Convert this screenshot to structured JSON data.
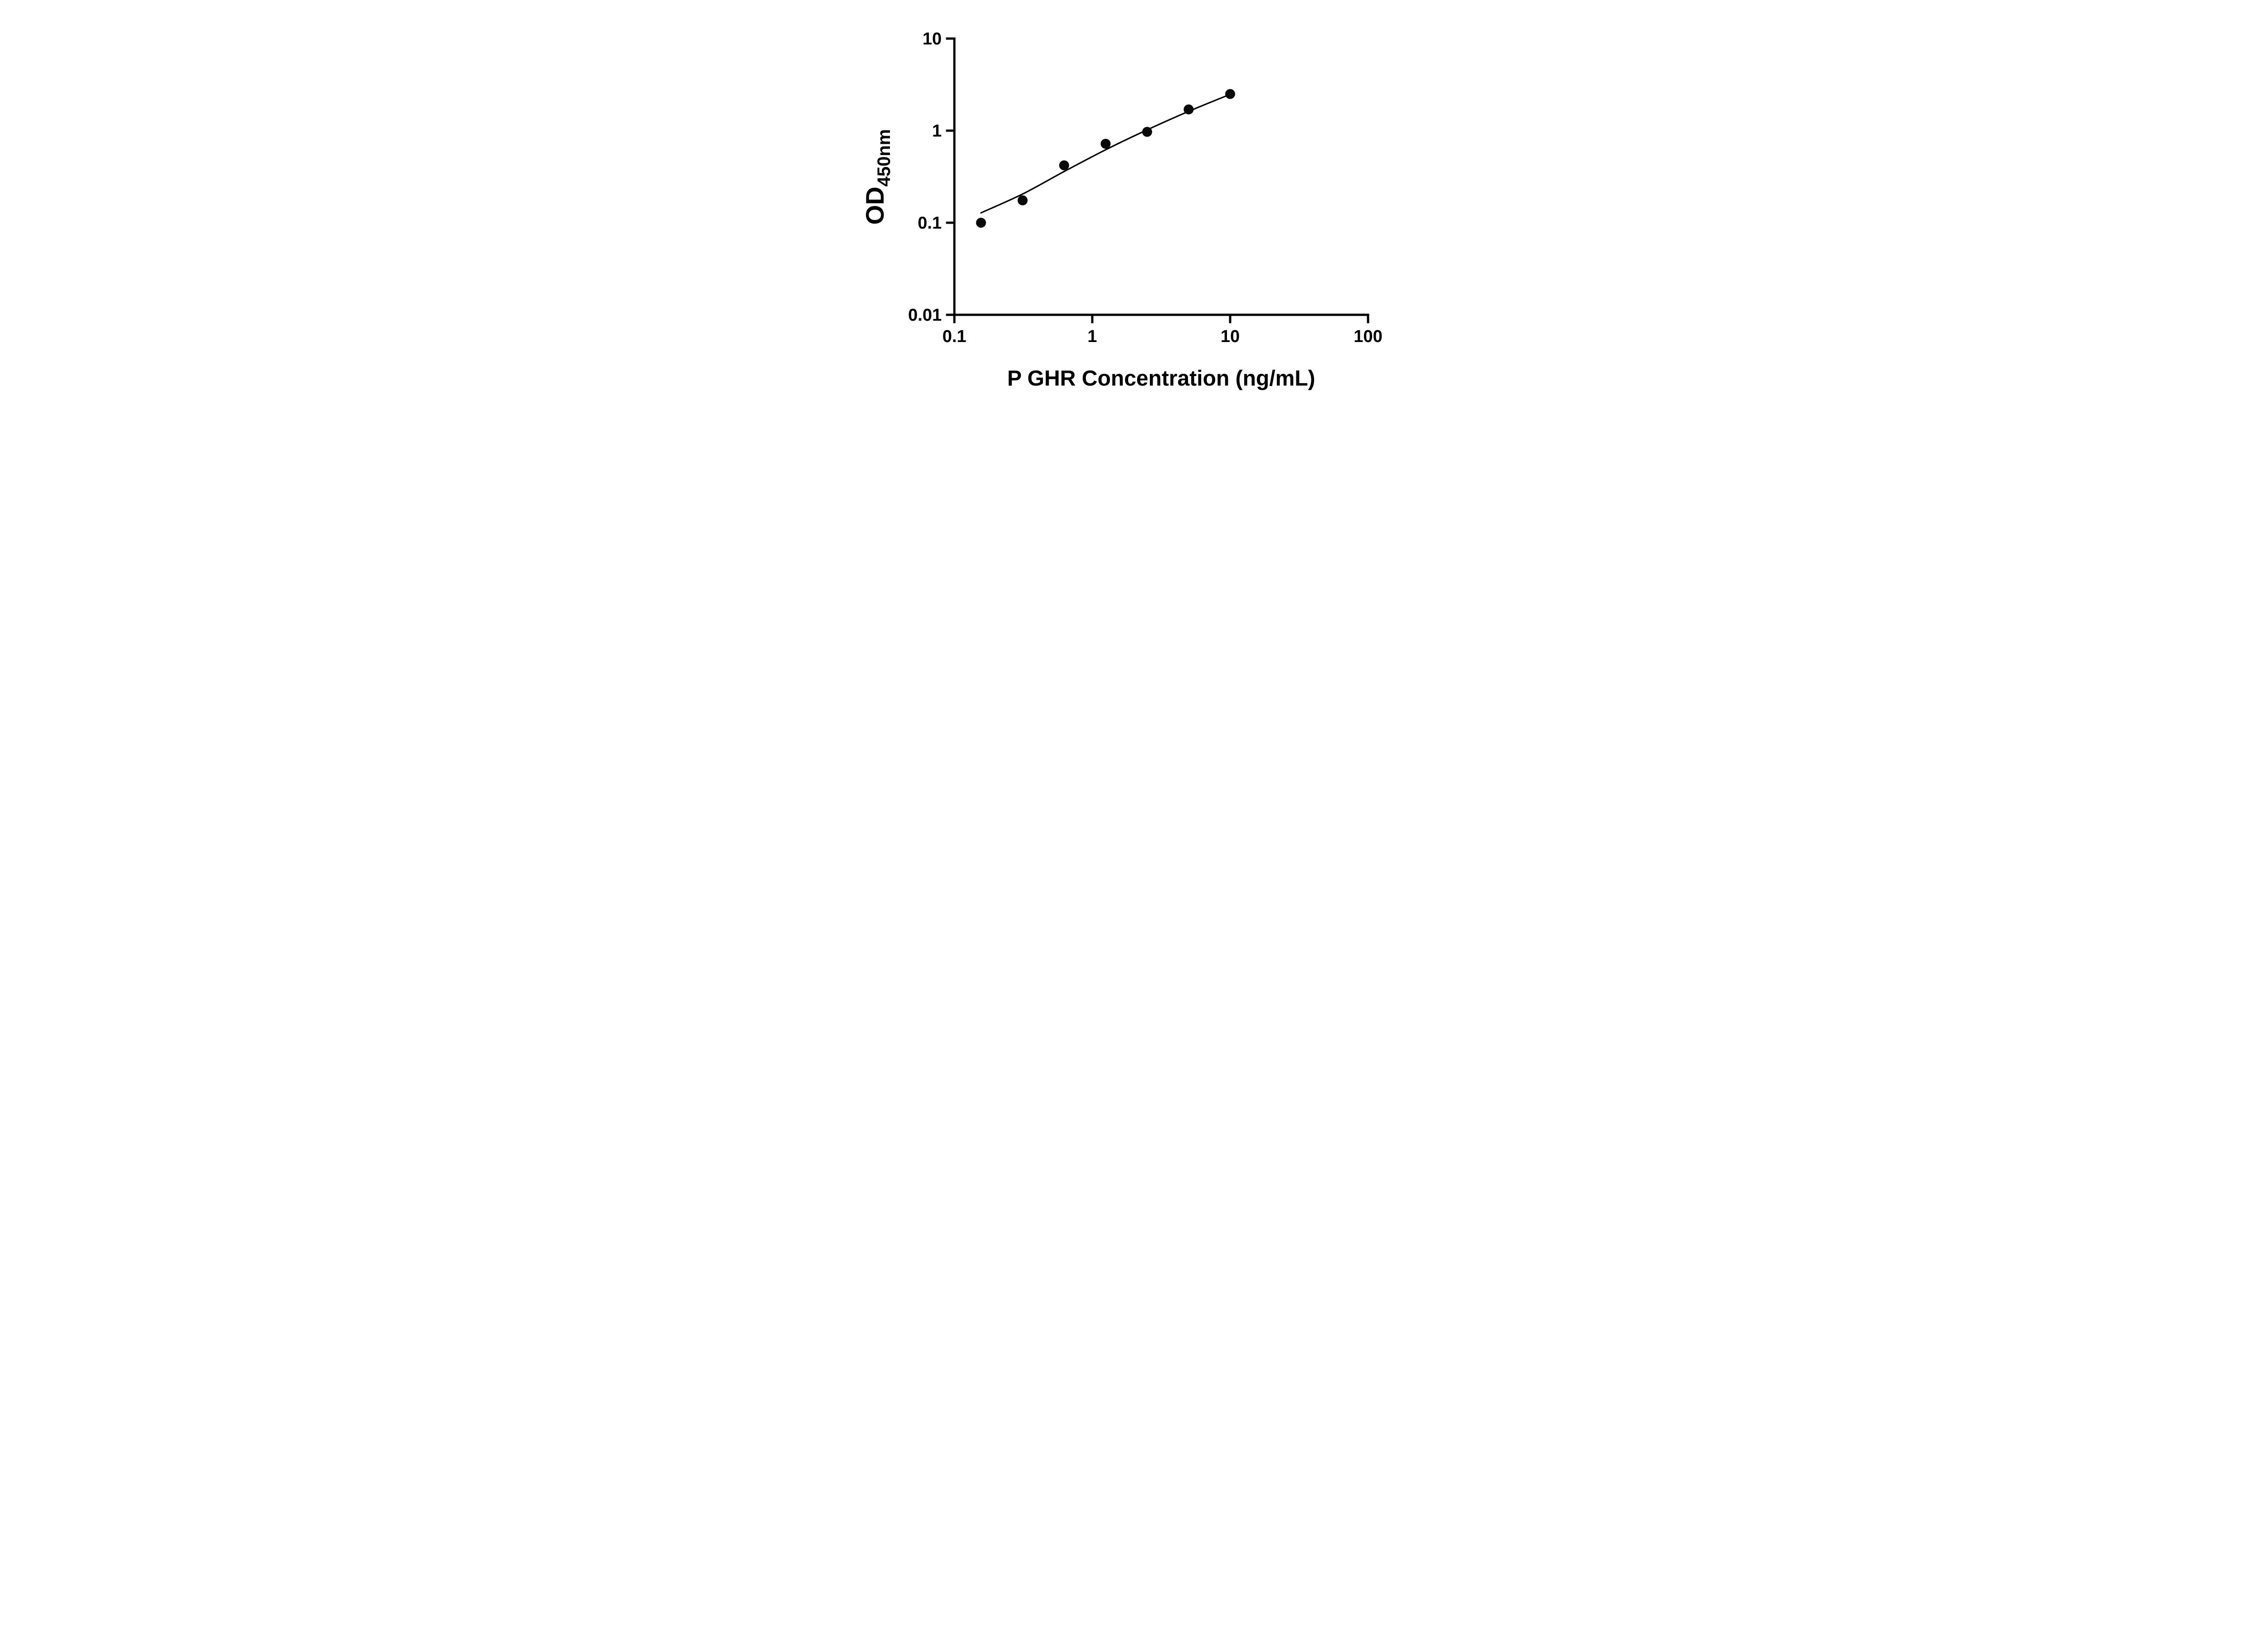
{
  "chart_data": {
    "type": "scatter",
    "title": "",
    "xlabel": "P GHR Concentration (ng/mL)",
    "ylabel": "OD",
    "ylabel_sub": "450nm",
    "x_scale": "log",
    "y_scale": "log",
    "xlim": [
      0.1,
      100
    ],
    "ylim": [
      0.01,
      10
    ],
    "x_ticks": [
      0.1,
      1,
      10,
      100
    ],
    "x_tick_labels": [
      "0.1",
      "1",
      "10",
      "100"
    ],
    "y_ticks": [
      0.01,
      0.1,
      1,
      10
    ],
    "y_tick_labels": [
      "0.01",
      "0.1",
      "1",
      "10"
    ],
    "grid": false,
    "legend": null,
    "marker_color": "#0a0a0a",
    "line_color": "#000000",
    "points": [
      [
        0.156,
        0.1
      ],
      [
        0.3125,
        0.175
      ],
      [
        0.625,
        0.42
      ],
      [
        1.25,
        0.72
      ],
      [
        2.5,
        0.97
      ],
      [
        5,
        1.7
      ],
      [
        10,
        2.5
      ]
    ],
    "fit_curve": [
      [
        0.156,
        0.128
      ],
      [
        0.3125,
        0.205
      ],
      [
        0.625,
        0.36
      ],
      [
        1.25,
        0.62
      ],
      [
        2.5,
        1.02
      ],
      [
        5,
        1.62
      ],
      [
        10,
        2.48
      ]
    ]
  }
}
